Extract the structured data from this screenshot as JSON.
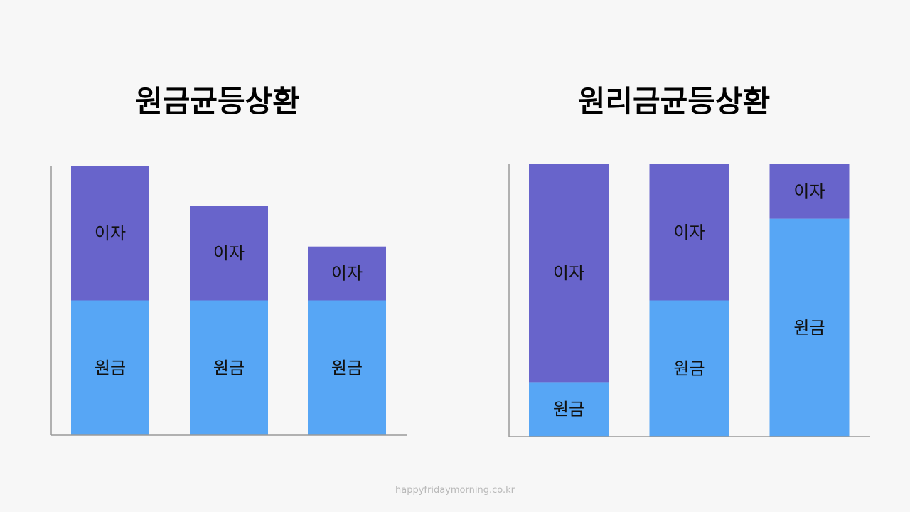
{
  "page": {
    "background": "#F7F7F7",
    "axis_color": "#9A9A9A"
  },
  "chart_data": [
    {
      "type": "bar",
      "stacked": true,
      "title": "원금균등상환",
      "series": [
        {
          "name": "원금",
          "values": [
            50,
            50,
            50
          ]
        },
        {
          "name": "이자",
          "values": [
            50,
            35,
            20
          ]
        }
      ],
      "ylim": [
        0,
        100
      ],
      "grid": false,
      "legend": "none",
      "colors": {
        "원금": "#57A6F5",
        "이자": "#6864CB"
      }
    },
    {
      "type": "bar",
      "stacked": true,
      "title": "원리금균등상환",
      "series": [
        {
          "name": "원금",
          "values": [
            20,
            50,
            80
          ]
        },
        {
          "name": "이자",
          "values": [
            80,
            50,
            20
          ]
        }
      ],
      "ylim": [
        0,
        100
      ],
      "grid": false,
      "legend": "none",
      "colors": {
        "원금": "#57A6F5",
        "이자": "#6864CB"
      }
    }
  ],
  "footer": {
    "text": "happyfridaymorning.co.kr"
  }
}
